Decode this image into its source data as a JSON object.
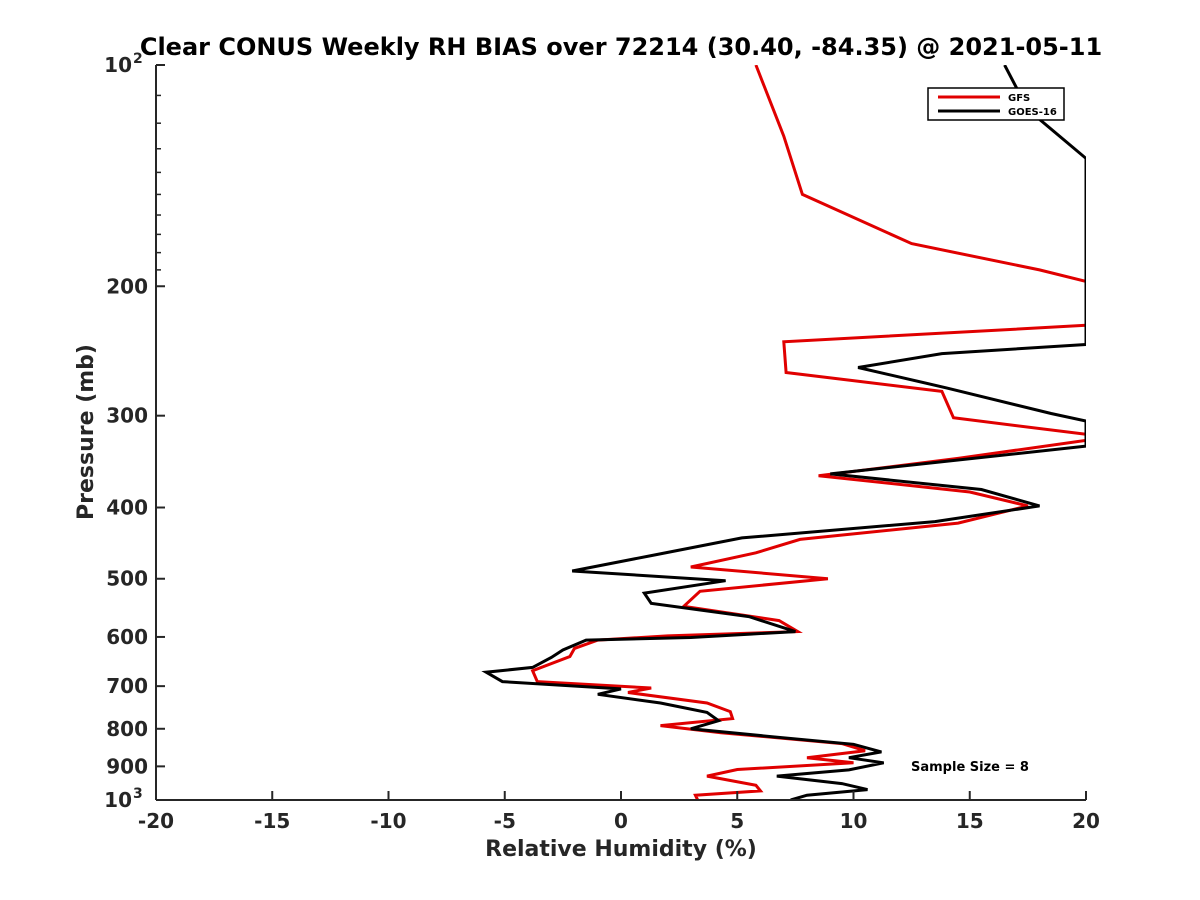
{
  "chart_data": {
    "type": "line",
    "title": "Clear CONUS Weekly RH BIAS over 72214 (30.40, -84.35) @ 2021-05-11",
    "xlabel": "Relative Humidity (%)",
    "ylabel": "Pressure (mb)",
    "xlim": [
      -20,
      20
    ],
    "ylim": [
      100,
      1000
    ],
    "yscale": "log",
    "yreversed": true,
    "grid": false,
    "xticks": [
      "-20",
      "-15",
      "-10",
      "-5",
      "0",
      "5",
      "10",
      "15",
      "20"
    ],
    "yticks": [
      {
        "value": 100,
        "base": "10",
        "exp": "2"
      },
      {
        "value": 200,
        "label": "200"
      },
      {
        "value": 300,
        "label": "300"
      },
      {
        "value": 400,
        "label": "400"
      },
      {
        "value": 500,
        "label": "500"
      },
      {
        "value": 600,
        "label": "600"
      },
      {
        "value": 700,
        "label": "700"
      },
      {
        "value": 800,
        "label": "800"
      },
      {
        "value": 900,
        "label": "900"
      },
      {
        "value": 1000,
        "base": "10",
        "exp": "3"
      }
    ],
    "legend_position": "top-right",
    "annotation": "Sample Size = 8",
    "series": [
      {
        "name": "GFS",
        "color": "#e00000",
        "points": [
          [
            5.8,
            100
          ],
          [
            7.0,
            125
          ],
          [
            7.8,
            150
          ],
          [
            12.5,
            175
          ],
          [
            18.0,
            190
          ],
          [
            20.0,
            197
          ],
          [
            20.0,
            226
          ],
          [
            7.0,
            238
          ],
          [
            7.1,
            262
          ],
          [
            13.8,
            278
          ],
          [
            14.3,
            302
          ],
          [
            20.0,
            318
          ],
          [
            20.0,
            324
          ],
          [
            14.5,
            343
          ],
          [
            8.5,
            362
          ],
          [
            15.0,
            381
          ],
          [
            17.5,
            398
          ],
          [
            14.5,
            420
          ],
          [
            7.7,
            442
          ],
          [
            5.8,
            461
          ],
          [
            3.0,
            482
          ],
          [
            8.9,
            500
          ],
          [
            3.4,
            520
          ],
          [
            2.7,
            545
          ],
          [
            6.8,
            570
          ],
          [
            7.6,
            590
          ],
          [
            2.0,
            598
          ],
          [
            -1.0,
            606
          ],
          [
            -2.0,
            622
          ],
          [
            -2.2,
            638
          ],
          [
            -3.8,
            667
          ],
          [
            -3.6,
            690
          ],
          [
            1.3,
            704
          ],
          [
            0.3,
            714
          ],
          [
            3.7,
            738
          ],
          [
            4.7,
            758
          ],
          [
            4.8,
            775
          ],
          [
            1.7,
            792
          ],
          [
            4.3,
            810
          ],
          [
            9.5,
            838
          ],
          [
            10.5,
            857
          ],
          [
            8.0,
            876
          ],
          [
            10.0,
            890
          ],
          [
            5.0,
            909
          ],
          [
            3.7,
            928
          ],
          [
            5.8,
            955
          ],
          [
            6.0,
            972
          ],
          [
            3.2,
            985
          ],
          [
            3.3,
            1000
          ]
        ]
      },
      {
        "name": "GOES-16",
        "color": "#000000",
        "points": [
          [
            16.5,
            100
          ],
          [
            17.5,
            115
          ],
          [
            20.0,
            134
          ],
          [
            20.0,
            240
          ],
          [
            13.8,
            247
          ],
          [
            10.2,
            258
          ],
          [
            14.0,
            275
          ],
          [
            18.5,
            298
          ],
          [
            20.0,
            305
          ],
          [
            20.0,
            330
          ],
          [
            9.0,
            360
          ],
          [
            15.5,
            378
          ],
          [
            18.0,
            398
          ],
          [
            13.5,
            418
          ],
          [
            5.2,
            440
          ],
          [
            1.3,
            465
          ],
          [
            -2.1,
            488
          ],
          [
            4.5,
            503
          ],
          [
            1.0,
            523
          ],
          [
            1.3,
            540
          ],
          [
            5.5,
            563
          ],
          [
            7.5,
            590
          ],
          [
            3.0,
            601
          ],
          [
            -1.5,
            606
          ],
          [
            -2.5,
            625
          ],
          [
            -3.0,
            640
          ],
          [
            -3.8,
            660
          ],
          [
            -5.8,
            670
          ],
          [
            -5.1,
            690
          ],
          [
            0.0,
            706
          ],
          [
            -1.0,
            718
          ],
          [
            1.7,
            738
          ],
          [
            3.7,
            760
          ],
          [
            4.2,
            780
          ],
          [
            3.0,
            800
          ],
          [
            6.5,
            820
          ],
          [
            10.0,
            840
          ],
          [
            11.2,
            860
          ],
          [
            9.8,
            876
          ],
          [
            11.3,
            890
          ],
          [
            9.8,
            910
          ],
          [
            6.7,
            928
          ],
          [
            9.5,
            950
          ],
          [
            10.6,
            968
          ],
          [
            8.0,
            985
          ],
          [
            7.3,
            1000
          ]
        ]
      }
    ]
  }
}
